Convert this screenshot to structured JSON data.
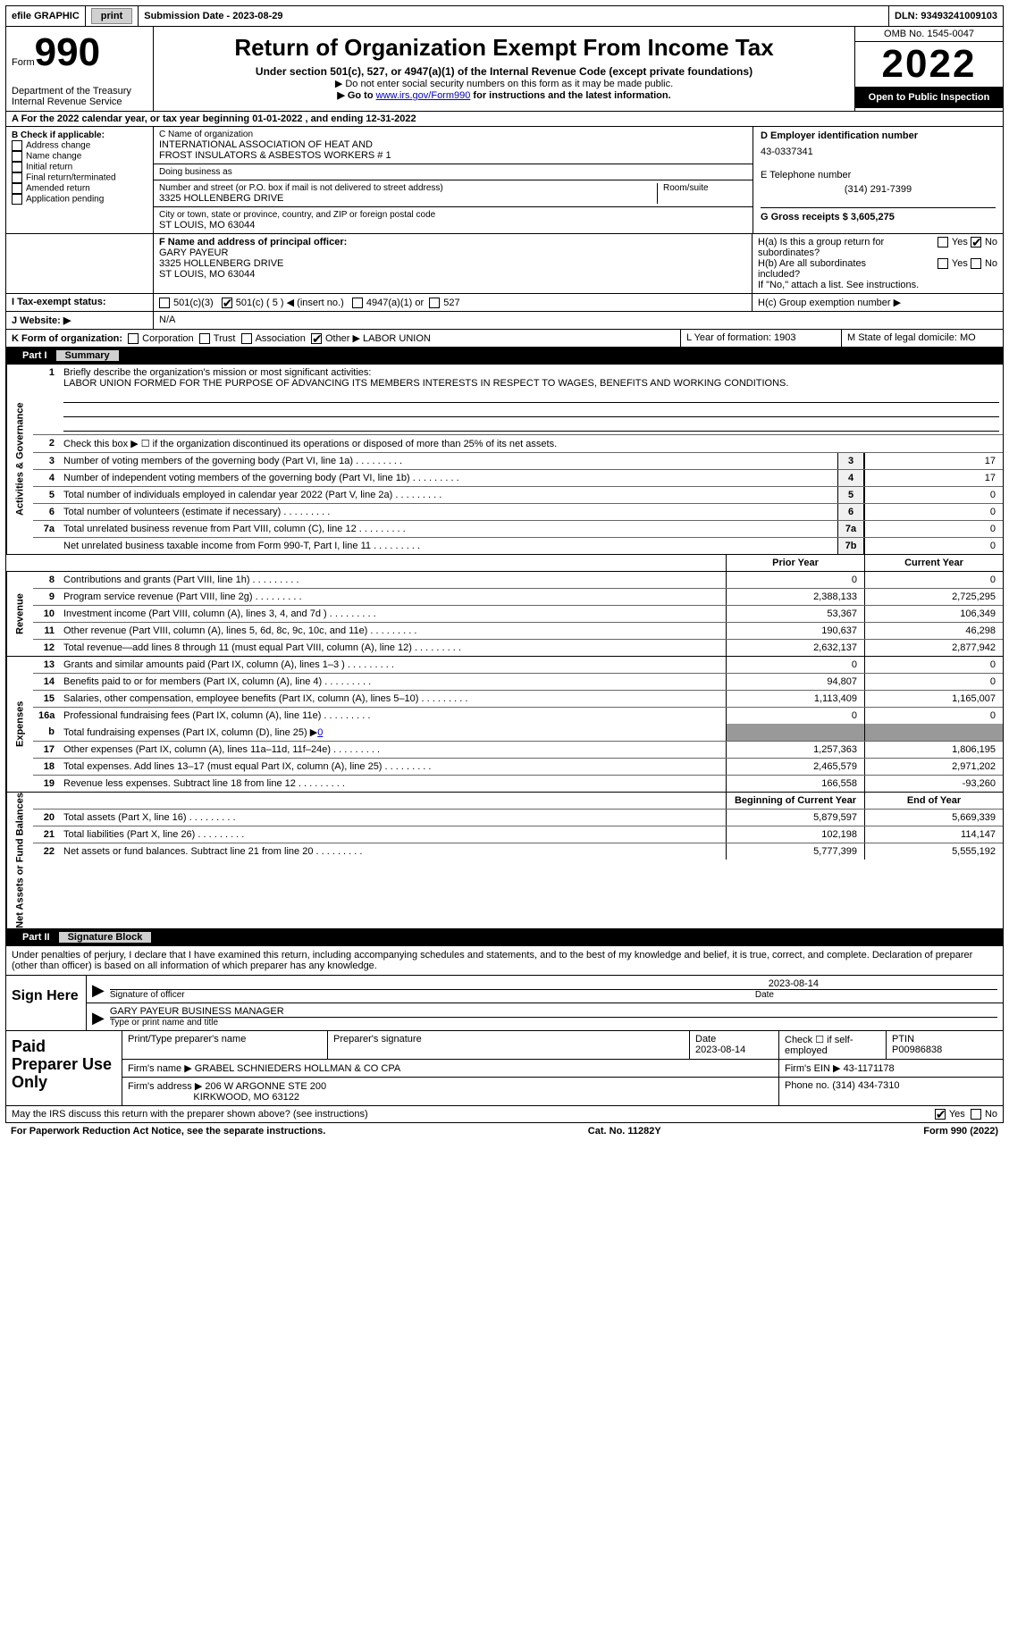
{
  "topbar": {
    "efile": "efile GRAPHIC",
    "print": "print",
    "subdate_lbl": "Submission Date - 2023-08-29",
    "dln_lbl": "DLN: 93493241009103"
  },
  "header": {
    "form_lbl": "Form",
    "form_num": "990",
    "title": "Return of Organization Exempt From Income Tax",
    "subtitle": "Under section 501(c), 527, or 4947(a)(1) of the Internal Revenue Code (except private foundations)",
    "note1": "▶ Do not enter social security numbers on this form as it may be made public.",
    "note2_pre": "▶ Go to ",
    "note2_link": "www.irs.gov/Form990",
    "note2_post": " for instructions and the latest information.",
    "dept": "Department of the Treasury",
    "irs": "Internal Revenue Service",
    "omb": "OMB No. 1545-0047",
    "year": "2022",
    "open": "Open to Public Inspection"
  },
  "section_a": "A For the 2022 calendar year, or tax year beginning 01-01-2022    , and ending 12-31-2022",
  "b": {
    "lbl": "B Check if applicable:",
    "addr": "Address change",
    "name": "Name change",
    "init": "Initial return",
    "final": "Final return/terminated",
    "amend": "Amended return",
    "app": "Application pending"
  },
  "c": {
    "name_lbl": "C Name of organization",
    "name1": "INTERNATIONAL ASSOCIATION OF HEAT AND",
    "name2": "FROST INSULATORS & ASBESTOS WORKERS # 1",
    "dba_lbl": "Doing business as",
    "addr_lbl": "Number and street (or P.O. box if mail is not delivered to street address)",
    "room_lbl": "Room/suite",
    "addr": "3325 HOLLENBERG DRIVE",
    "city_lbl": "City or town, state or province, country, and ZIP or foreign postal code",
    "city": "ST LOUIS, MO  63044"
  },
  "d": {
    "lbl": "D Employer identification number",
    "val": "43-0337341"
  },
  "e": {
    "lbl": "E Telephone number",
    "val": "(314) 291-7399"
  },
  "g": {
    "lbl": "G Gross receipts $ 3,605,275"
  },
  "f": {
    "lbl": "F  Name and address of principal officer:",
    "name": "GARY PAYEUR",
    "addr1": "3325 HOLLENBERG DRIVE",
    "addr2": "ST LOUIS, MO  63044"
  },
  "h": {
    "a": "H(a)  Is this a group return for subordinates?",
    "b": "H(b)  Are all subordinates included?",
    "b2": "If \"No,\" attach a list. See instructions.",
    "c": "H(c)  Group exemption number ▶",
    "yes": "Yes",
    "no": "No"
  },
  "i": {
    "lbl": "I  Tax-exempt status:",
    "a": "501(c)(3)",
    "b": "501(c) ( 5 ) ◀ (insert no.)",
    "c": "4947(a)(1) or",
    "d": "527"
  },
  "j": {
    "lbl": "J  Website: ▶",
    "val": "N/A"
  },
  "k": {
    "lbl": "K Form of organization:",
    "corp": "Corporation",
    "trust": "Trust",
    "assoc": "Association",
    "other": "Other ▶",
    "other_val": "LABOR UNION"
  },
  "l": {
    "lbl": "L Year of formation: 1903"
  },
  "m": {
    "lbl": "M State of legal domicile: MO"
  },
  "part1": {
    "lbl": "Part I",
    "title": "Summary"
  },
  "summary": {
    "line1_lbl": "Briefly describe the organization's mission or most significant activities:",
    "line1_text": "LABOR UNION FORMED FOR THE PURPOSE OF ADVANCING ITS MEMBERS INTERESTS IN RESPECT TO WAGES, BENEFITS AND WORKING CONDITIONS.",
    "line2": "Check this box ▶ ☐  if the organization discontinued its operations or disposed of more than 25% of its net assets.",
    "sideA": "Activities & Governance",
    "sideB": "Revenue",
    "sideC": "Expenses",
    "sideD": "Net Assets or Fund Balances",
    "prior_lbl": "Prior Year",
    "current_lbl": "Current Year",
    "begin_lbl": "Beginning of Current Year",
    "end_lbl": "End of Year",
    "rows_simple": [
      {
        "n": "3",
        "t": "Number of voting members of the governing body (Part VI, line 1a)",
        "box": "3",
        "v": "17"
      },
      {
        "n": "4",
        "t": "Number of independent voting members of the governing body (Part VI, line 1b)",
        "box": "4",
        "v": "17"
      },
      {
        "n": "5",
        "t": "Total number of individuals employed in calendar year 2022 (Part V, line 2a)",
        "box": "5",
        "v": "0"
      },
      {
        "n": "6",
        "t": "Total number of volunteers (estimate if necessary)",
        "box": "6",
        "v": "0"
      },
      {
        "n": "7a",
        "t": "Total unrelated business revenue from Part VIII, column (C), line 12",
        "box": "7a",
        "v": "0"
      },
      {
        "n": "",
        "t": "Net unrelated business taxable income from Form 990-T, Part I, line 11",
        "box": "7b",
        "v": "0"
      }
    ],
    "rows_rev": [
      {
        "n": "8",
        "t": "Contributions and grants (Part VIII, line 1h)",
        "p": "0",
        "c": "0"
      },
      {
        "n": "9",
        "t": "Program service revenue (Part VIII, line 2g)",
        "p": "2,388,133",
        "c": "2,725,295"
      },
      {
        "n": "10",
        "t": "Investment income (Part VIII, column (A), lines 3, 4, and 7d )",
        "p": "53,367",
        "c": "106,349"
      },
      {
        "n": "11",
        "t": "Other revenue (Part VIII, column (A), lines 5, 6d, 8c, 9c, 10c, and 11e)",
        "p": "190,637",
        "c": "46,298"
      },
      {
        "n": "12",
        "t": "Total revenue—add lines 8 through 11 (must equal Part VIII, column (A), line 12)",
        "p": "2,632,137",
        "c": "2,877,942"
      }
    ],
    "rows_exp": [
      {
        "n": "13",
        "t": "Grants and similar amounts paid (Part IX, column (A), lines 1–3 )",
        "p": "0",
        "c": "0"
      },
      {
        "n": "14",
        "t": "Benefits paid to or for members (Part IX, column (A), line 4)",
        "p": "94,807",
        "c": "0"
      },
      {
        "n": "15",
        "t": "Salaries, other compensation, employee benefits (Part IX, column (A), lines 5–10)",
        "p": "1,113,409",
        "c": "1,165,007"
      },
      {
        "n": "16a",
        "t": "Professional fundraising fees (Part IX, column (A), line 11e)",
        "p": "0",
        "c": "0"
      }
    ],
    "row16b": {
      "n": "b",
      "t": "Total fundraising expenses (Part IX, column (D), line 25) ▶",
      "v": "0"
    },
    "rows_exp2": [
      {
        "n": "17",
        "t": "Other expenses (Part IX, column (A), lines 11a–11d, 11f–24e)",
        "p": "1,257,363",
        "c": "1,806,195"
      },
      {
        "n": "18",
        "t": "Total expenses. Add lines 13–17 (must equal Part IX, column (A), line 25)",
        "p": "2,465,579",
        "c": "2,971,202"
      },
      {
        "n": "19",
        "t": "Revenue less expenses. Subtract line 18 from line 12",
        "p": "166,558",
        "c": "-93,260"
      }
    ],
    "rows_net": [
      {
        "n": "20",
        "t": "Total assets (Part X, line 16)",
        "p": "5,879,597",
        "c": "5,669,339"
      },
      {
        "n": "21",
        "t": "Total liabilities (Part X, line 26)",
        "p": "102,198",
        "c": "114,147"
      },
      {
        "n": "22",
        "t": "Net assets or fund balances. Subtract line 21 from line 20",
        "p": "5,777,399",
        "c": "5,555,192"
      }
    ]
  },
  "part2": {
    "lbl": "Part II",
    "title": "Signature Block"
  },
  "sig": {
    "text": "Under penalties of perjury, I declare that I have examined this return, including accompanying schedules and statements, and to the best of my knowledge and belief, it is true, correct, and complete. Declaration of preparer (other than officer) is based on all information of which preparer has any knowledge.",
    "sign_here": "Sign Here",
    "sig_lbl": "Signature of officer",
    "date_lbl": "Date",
    "date": "2023-08-14",
    "name": "GARY PAYEUR  BUSINESS MANAGER",
    "name_lbl": "Type or print name and title"
  },
  "paid": {
    "lbl": "Paid Preparer Use Only",
    "c1": "Print/Type preparer's name",
    "c2": "Preparer's signature",
    "c3_lbl": "Date",
    "c3": "2023-08-14",
    "c4": "Check ☐ if self-employed",
    "c5_lbl": "PTIN",
    "c5": "P00986838",
    "firm_lbl": "Firm's name    ▶",
    "firm": "GRABEL SCHNIEDERS HOLLMAN & CO CPA",
    "ein_lbl": "Firm's EIN ▶",
    "ein": "43-1171178",
    "addr_lbl": "Firm's address ▶",
    "addr1": "206 W ARGONNE STE 200",
    "addr2": "KIRKWOOD, MO  63122",
    "phone_lbl": "Phone no.",
    "phone": "(314) 434-7310"
  },
  "footer": {
    "q": "May the IRS discuss this return with the preparer shown above? (see instructions)",
    "yes": "Yes",
    "no": "No",
    "paperwork": "For Paperwork Reduction Act Notice, see the separate instructions.",
    "cat": "Cat. No. 11282Y",
    "form": "Form 990 (2022)"
  }
}
